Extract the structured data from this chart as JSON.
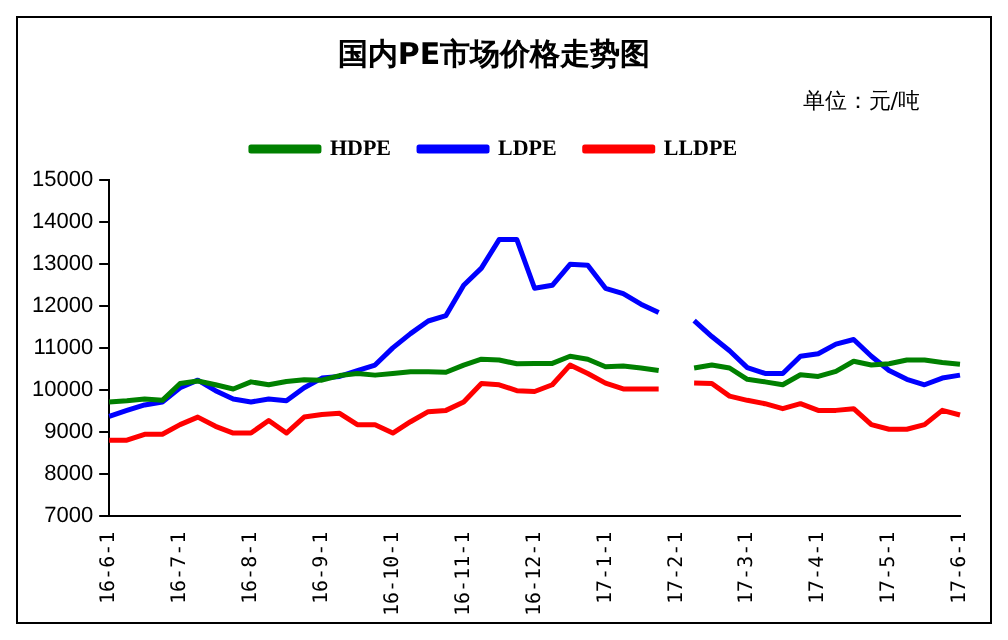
{
  "chart_data": {
    "type": "line",
    "title": "国内PE市场价格走势图",
    "annotations": [
      "单位：元/吨"
    ],
    "categories": [
      "16-6-1",
      null,
      null,
      null,
      "16-7-1",
      null,
      null,
      null,
      "16-8-1",
      null,
      null,
      null,
      "16-9-1",
      null,
      null,
      null,
      "16-10-1",
      null,
      null,
      null,
      "16-11-1",
      null,
      null,
      null,
      "16-12-1",
      null,
      null,
      null,
      "17-1-1",
      null,
      null,
      null,
      "17-2-1",
      null,
      null,
      null,
      "17-3-1",
      null,
      null,
      null,
      "17-4-1",
      null,
      null,
      null,
      "17-5-1",
      null,
      null,
      null,
      "17-6-1"
    ],
    "series": [
      {
        "name": "HDPE",
        "color": "#008000",
        "values": [
          9710,
          9740,
          9780,
          9750,
          10150,
          10210,
          10120,
          10020,
          10190,
          10120,
          10200,
          10240,
          10230,
          10340,
          10390,
          10350,
          10390,
          10430,
          10430,
          10420,
          10590,
          10730,
          10710,
          10620,
          10630,
          10630,
          10800,
          10730,
          10550,
          10570,
          10520,
          10460,
          null,
          10520,
          10590,
          10520,
          10250,
          10190,
          10120,
          10360,
          10320,
          10440,
          10680,
          10590,
          10620,
          10710,
          10710,
          10650,
          10610
        ]
      },
      {
        "name": "LDPE",
        "color": "#0000ff",
        "values": [
          9370,
          9510,
          9640,
          9710,
          10050,
          10230,
          9980,
          9780,
          9710,
          9780,
          9740,
          10050,
          10280,
          10320,
          10460,
          10590,
          11000,
          11340,
          11640,
          11770,
          12490,
          12900,
          13580,
          13580,
          12420,
          12490,
          12990,
          12970,
          12420,
          12290,
          12040,
          11840,
          null,
          11650,
          11270,
          10930,
          10530,
          10390,
          10390,
          10800,
          10860,
          11090,
          11200,
          10800,
          10460,
          10250,
          10120,
          10280,
          10350
        ]
      },
      {
        "name": "LLDPE",
        "color": "#ff0000",
        "values": [
          8800,
          8800,
          8940,
          8940,
          9170,
          9350,
          9130,
          8970,
          8970,
          9270,
          8970,
          9350,
          9410,
          9440,
          9170,
          9170,
          8970,
          9240,
          9480,
          9510,
          9710,
          10150,
          10120,
          9980,
          9960,
          10120,
          10590,
          10390,
          10160,
          10020,
          10020,
          10020,
          null,
          10160,
          10150,
          9850,
          9750,
          9670,
          9550,
          9670,
          9510,
          9510,
          9550,
          9170,
          9060,
          9060,
          9170,
          9510,
          9400
        ]
      }
    ],
    "ylim": [
      7000,
      15000
    ],
    "yticks": [
      7000,
      8000,
      9000,
      10000,
      11000,
      12000,
      13000,
      14000,
      15000
    ],
    "grid": false,
    "legend": "top",
    "marker": "none",
    "line_style": "solid"
  }
}
